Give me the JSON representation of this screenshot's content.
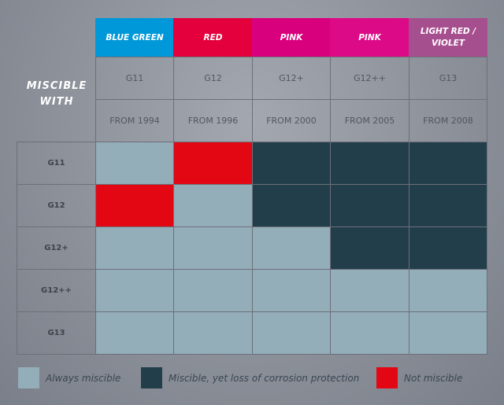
{
  "chart_data": {
    "type": "table",
    "title": "MISCIBLE WITH",
    "columns": [
      {
        "color_name": "BLUE GREEN",
        "type": "G11",
        "since": "FROM 1994",
        "color": "#0098d8"
      },
      {
        "color_name": "RED",
        "type": "G12",
        "since": "FROM 1996",
        "color": "#e4003c"
      },
      {
        "color_name": "PINK",
        "type": "G12+",
        "since": "FROM 2000",
        "color": "#d9007e"
      },
      {
        "color_name": "PINK",
        "type": "G12++",
        "since": "FROM 2005",
        "color": "#dc0a86"
      },
      {
        "color_name": "LIGHT RED / VIOLET",
        "type": "G13",
        "since": "FROM 2008",
        "color": "#a64f8f"
      }
    ],
    "rows": [
      "G11",
      "G12",
      "G12+",
      "G12++",
      "G13"
    ],
    "matrix": [
      [
        "always",
        "not",
        "loss",
        "loss",
        "loss"
      ],
      [
        "not",
        "always",
        "loss",
        "loss",
        "loss"
      ],
      [
        "always",
        "always",
        "always",
        "loss",
        "loss"
      ],
      [
        "always",
        "always",
        "always",
        "always",
        "always"
      ],
      [
        "always",
        "always",
        "always",
        "always",
        "always"
      ]
    ],
    "legend": [
      {
        "key": "always",
        "label": "Always miscible",
        "color": "#93adb9"
      },
      {
        "key": "loss",
        "label": "Miscible, yet loss of corrosion protection",
        "color": "#223e4b"
      },
      {
        "key": "not",
        "label": "Not miscible",
        "color": "#e30613"
      }
    ]
  }
}
